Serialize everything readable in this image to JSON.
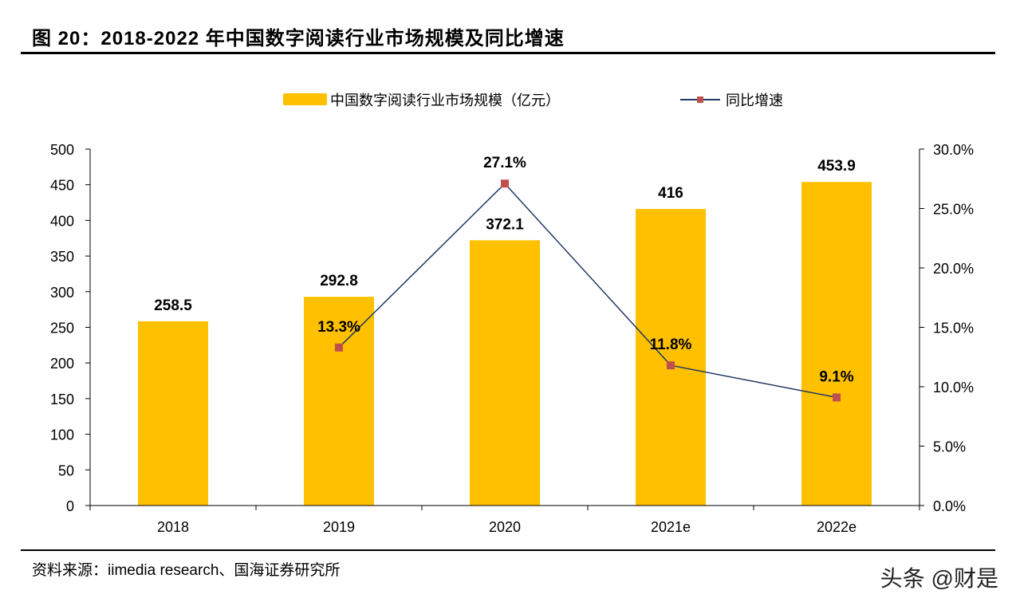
{
  "title": "图 20：2018-2022 年中国数字阅读行业市场规模及同比增速",
  "source": "资料来源：iimedia research、国海证券研究所",
  "watermark": "头条 @财是",
  "chart_data": {
    "type": "bar+line",
    "categories": [
      "2018",
      "2019",
      "2020",
      "2021e",
      "2022e"
    ],
    "series": [
      {
        "name": "中国数字阅读行业市场规模（亿元）",
        "type": "bar",
        "axis": "left",
        "color": "#FFC000",
        "values": [
          258.5,
          292.8,
          372.1,
          416,
          453.9
        ],
        "labels": [
          "258.5",
          "292.8",
          "372.1",
          "416",
          "453.9"
        ]
      },
      {
        "name": "同比增速",
        "type": "line",
        "axis": "right",
        "color": "#1F3864",
        "marker_color": "#C0504D",
        "values": [
          null,
          13.3,
          27.1,
          11.8,
          9.1
        ],
        "labels": [
          "",
          "13.3%",
          "27.1%",
          "11.8%",
          "9.1%"
        ]
      }
    ],
    "y_left": {
      "range": [
        0,
        500
      ],
      "ticks": [
        "0",
        "50",
        "100",
        "150",
        "200",
        "250",
        "300",
        "350",
        "400",
        "450",
        "500"
      ]
    },
    "y_right": {
      "range": [
        0,
        30
      ],
      "ticks": [
        "0.0%",
        "5.0%",
        "10.0%",
        "15.0%",
        "20.0%",
        "25.0%",
        "30.0%"
      ]
    },
    "grid": false,
    "legend_position": "top"
  }
}
